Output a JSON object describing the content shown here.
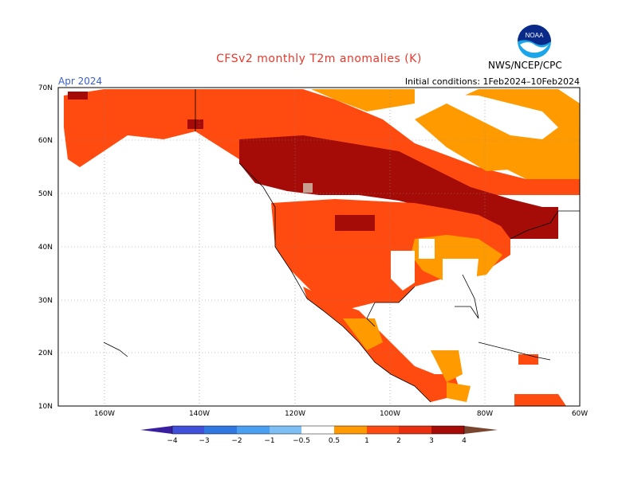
{
  "title": "CFSv2 monthly T2m anomalies (K)",
  "period": "Apr 2024",
  "initial_conditions": "Initial conditions: 1Feb2024–10Feb2024",
  "agency": "NWS/NCEP/CPC",
  "logo_text": "NOAA",
  "axes": {
    "lat_labels": [
      "70N",
      "60N",
      "50N",
      "40N",
      "30N",
      "20N",
      "10N"
    ],
    "lon_labels": [
      "160W",
      "140W",
      "120W",
      "100W",
      "80W",
      "60W"
    ]
  },
  "colorbar": {
    "tick_labels": [
      "−4",
      "−3",
      "−2",
      "−1",
      "−0.5",
      "0.5",
      "1",
      "2",
      "3",
      "4"
    ],
    "colors": [
      "#3a1ea0",
      "#4050d8",
      "#2f78e0",
      "#4b9ff0",
      "#7dbff5",
      "#ffffff",
      "#ff9a00",
      "#ff4a10",
      "#e83010",
      "#a50c08",
      "#c9a090",
      "#7a4630"
    ]
  }
}
